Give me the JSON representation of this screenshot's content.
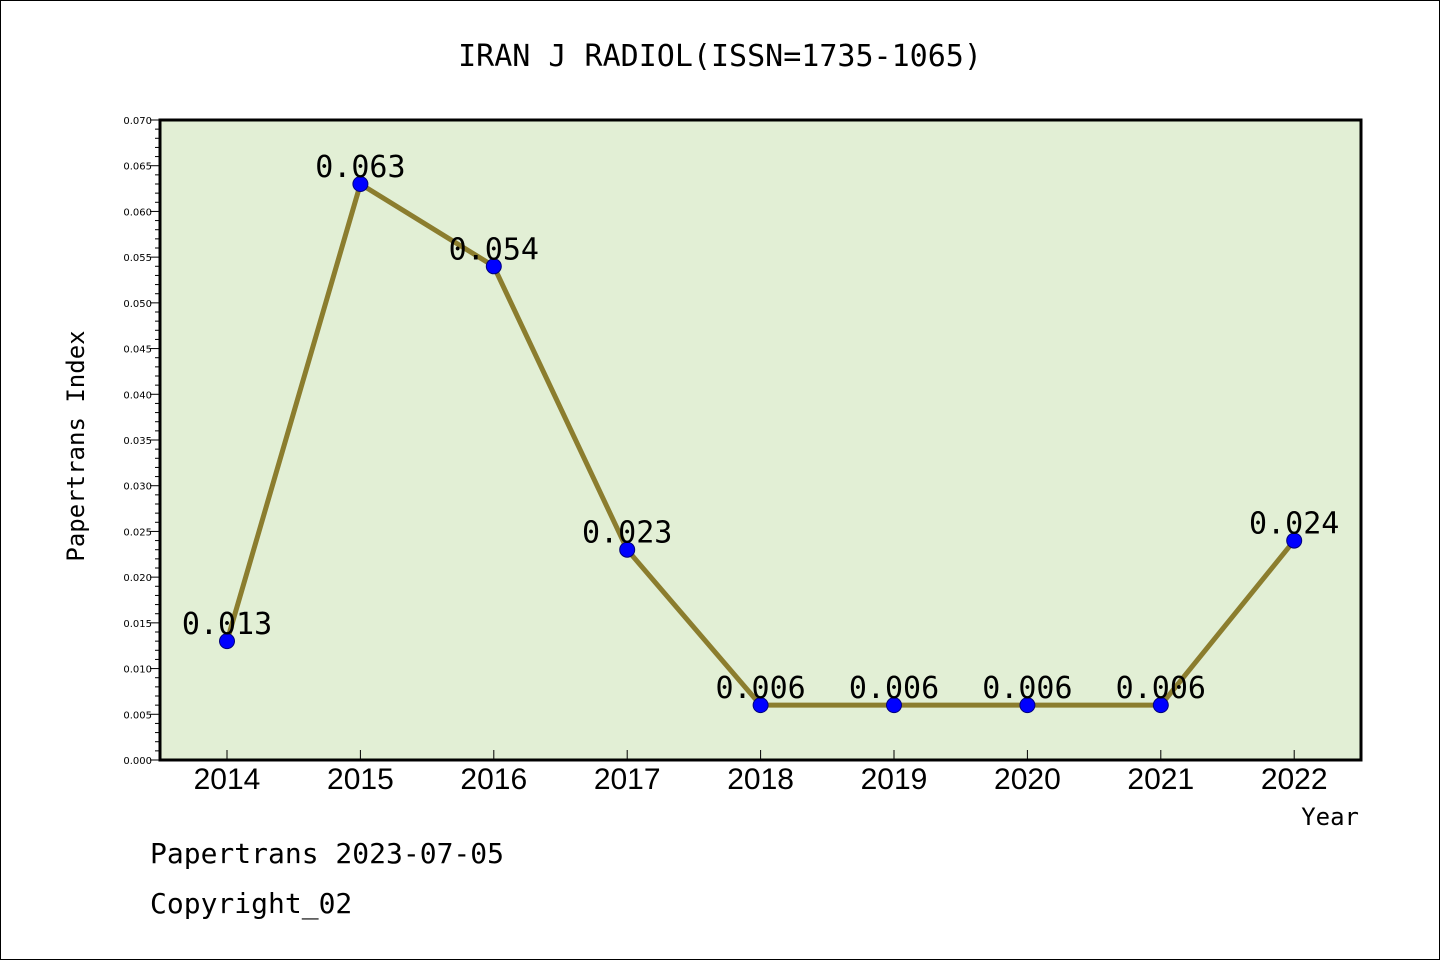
{
  "chart_data": {
    "type": "line",
    "title": "IRAN J RADIOL(ISSN=1735-1065)",
    "xlabel": "Year",
    "ylabel": "Papertrans Index",
    "categories": [
      "2014",
      "2015",
      "2016",
      "2017",
      "2018",
      "2019",
      "2020",
      "2021",
      "2022"
    ],
    "series": [
      {
        "values": [
          0.013,
          0.063,
          0.054,
          0.023,
          0.006,
          0.006,
          0.006,
          0.006,
          0.024
        ]
      }
    ],
    "data_labels": [
      "0.013",
      "0.063",
      "0.054",
      "0.023",
      "0.006",
      "0.006",
      "0.006",
      "0.006",
      "0.024"
    ],
    "ylim": [
      0,
      0.07
    ],
    "ytick_labels": [
      "0.000",
      "0.005",
      "0.010",
      "0.015",
      "0.020",
      "0.025",
      "0.030",
      "0.035",
      "0.040",
      "0.045",
      "0.050",
      "0.055",
      "0.060",
      "0.065",
      "0.070"
    ],
    "grid": false,
    "colors": {
      "plot_background": "#e2efd5",
      "line": "#8b7d2e",
      "marker": "#0000ff"
    }
  },
  "footer": {
    "line1": "Papertrans 2023-07-05",
    "line2": "Copyright_02"
  }
}
